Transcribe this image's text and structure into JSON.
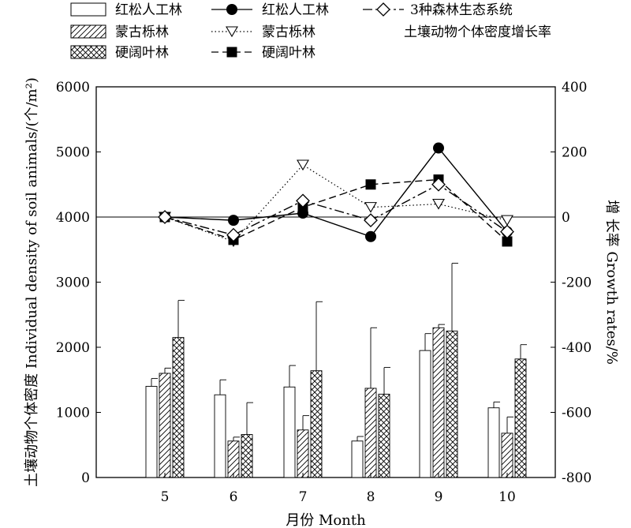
{
  "chart_data": {
    "type": "bar",
    "categories": [
      "5",
      "6",
      "7",
      "8",
      "9",
      "10"
    ],
    "xlabel": "月份 Month",
    "ylabel": "土壤动物个体密度 Individual density of soil animals/(个/m²)",
    "ylabel_right": "增 长率 Growth rates/%",
    "ylim": [
      0,
      6000
    ],
    "y2lim": [
      -800,
      400
    ],
    "yticks": [
      0,
      1000,
      2000,
      3000,
      4000,
      5000,
      6000
    ],
    "y2ticks": [
      -800,
      -600,
      -400,
      -200,
      0,
      200,
      400
    ],
    "legend_placement": "top",
    "legend_note": "土壤动物个体密度增长率",
    "series": [
      {
        "name": "红松人工林",
        "kind": "bar",
        "pattern": "empty",
        "values": [
          1400,
          1270,
          1390,
          560,
          1950,
          1070
        ],
        "errors": [
          120,
          230,
          330,
          70,
          260,
          90
        ]
      },
      {
        "name": "蒙古栎林",
        "kind": "bar",
        "pattern": "hatch",
        "values": [
          1600,
          560,
          730,
          1370,
          2300,
          680
        ],
        "errors": [
          80,
          60,
          220,
          930,
          50,
          250
        ]
      },
      {
        "name": "硬阔叶林",
        "kind": "bar",
        "pattern": "crosshatch",
        "values": [
          2150,
          660,
          1640,
          1280,
          2250,
          1820
        ],
        "errors": [
          570,
          490,
          1060,
          410,
          1040,
          220
        ]
      }
    ],
    "growth_series": [
      {
        "name": "红松人工林",
        "marker": "filled-circle",
        "line": "solid",
        "values": [
          0,
          -10,
          12,
          -60,
          212,
          -45
        ]
      },
      {
        "name": "蒙古栎林",
        "marker": "open-triangle",
        "line": "dotted",
        "values": [
          0,
          -75,
          160,
          30,
          40,
          -10
        ]
      },
      {
        "name": "硬阔叶林",
        "marker": "filled-square",
        "line": "dashed",
        "values": [
          0,
          -70,
          30,
          100,
          115,
          -75
        ]
      },
      {
        "name": "3种森林生态系统",
        "marker": "open-diamond",
        "line": "dashdot",
        "values": [
          0,
          -55,
          50,
          -10,
          100,
          -45
        ]
      }
    ]
  }
}
